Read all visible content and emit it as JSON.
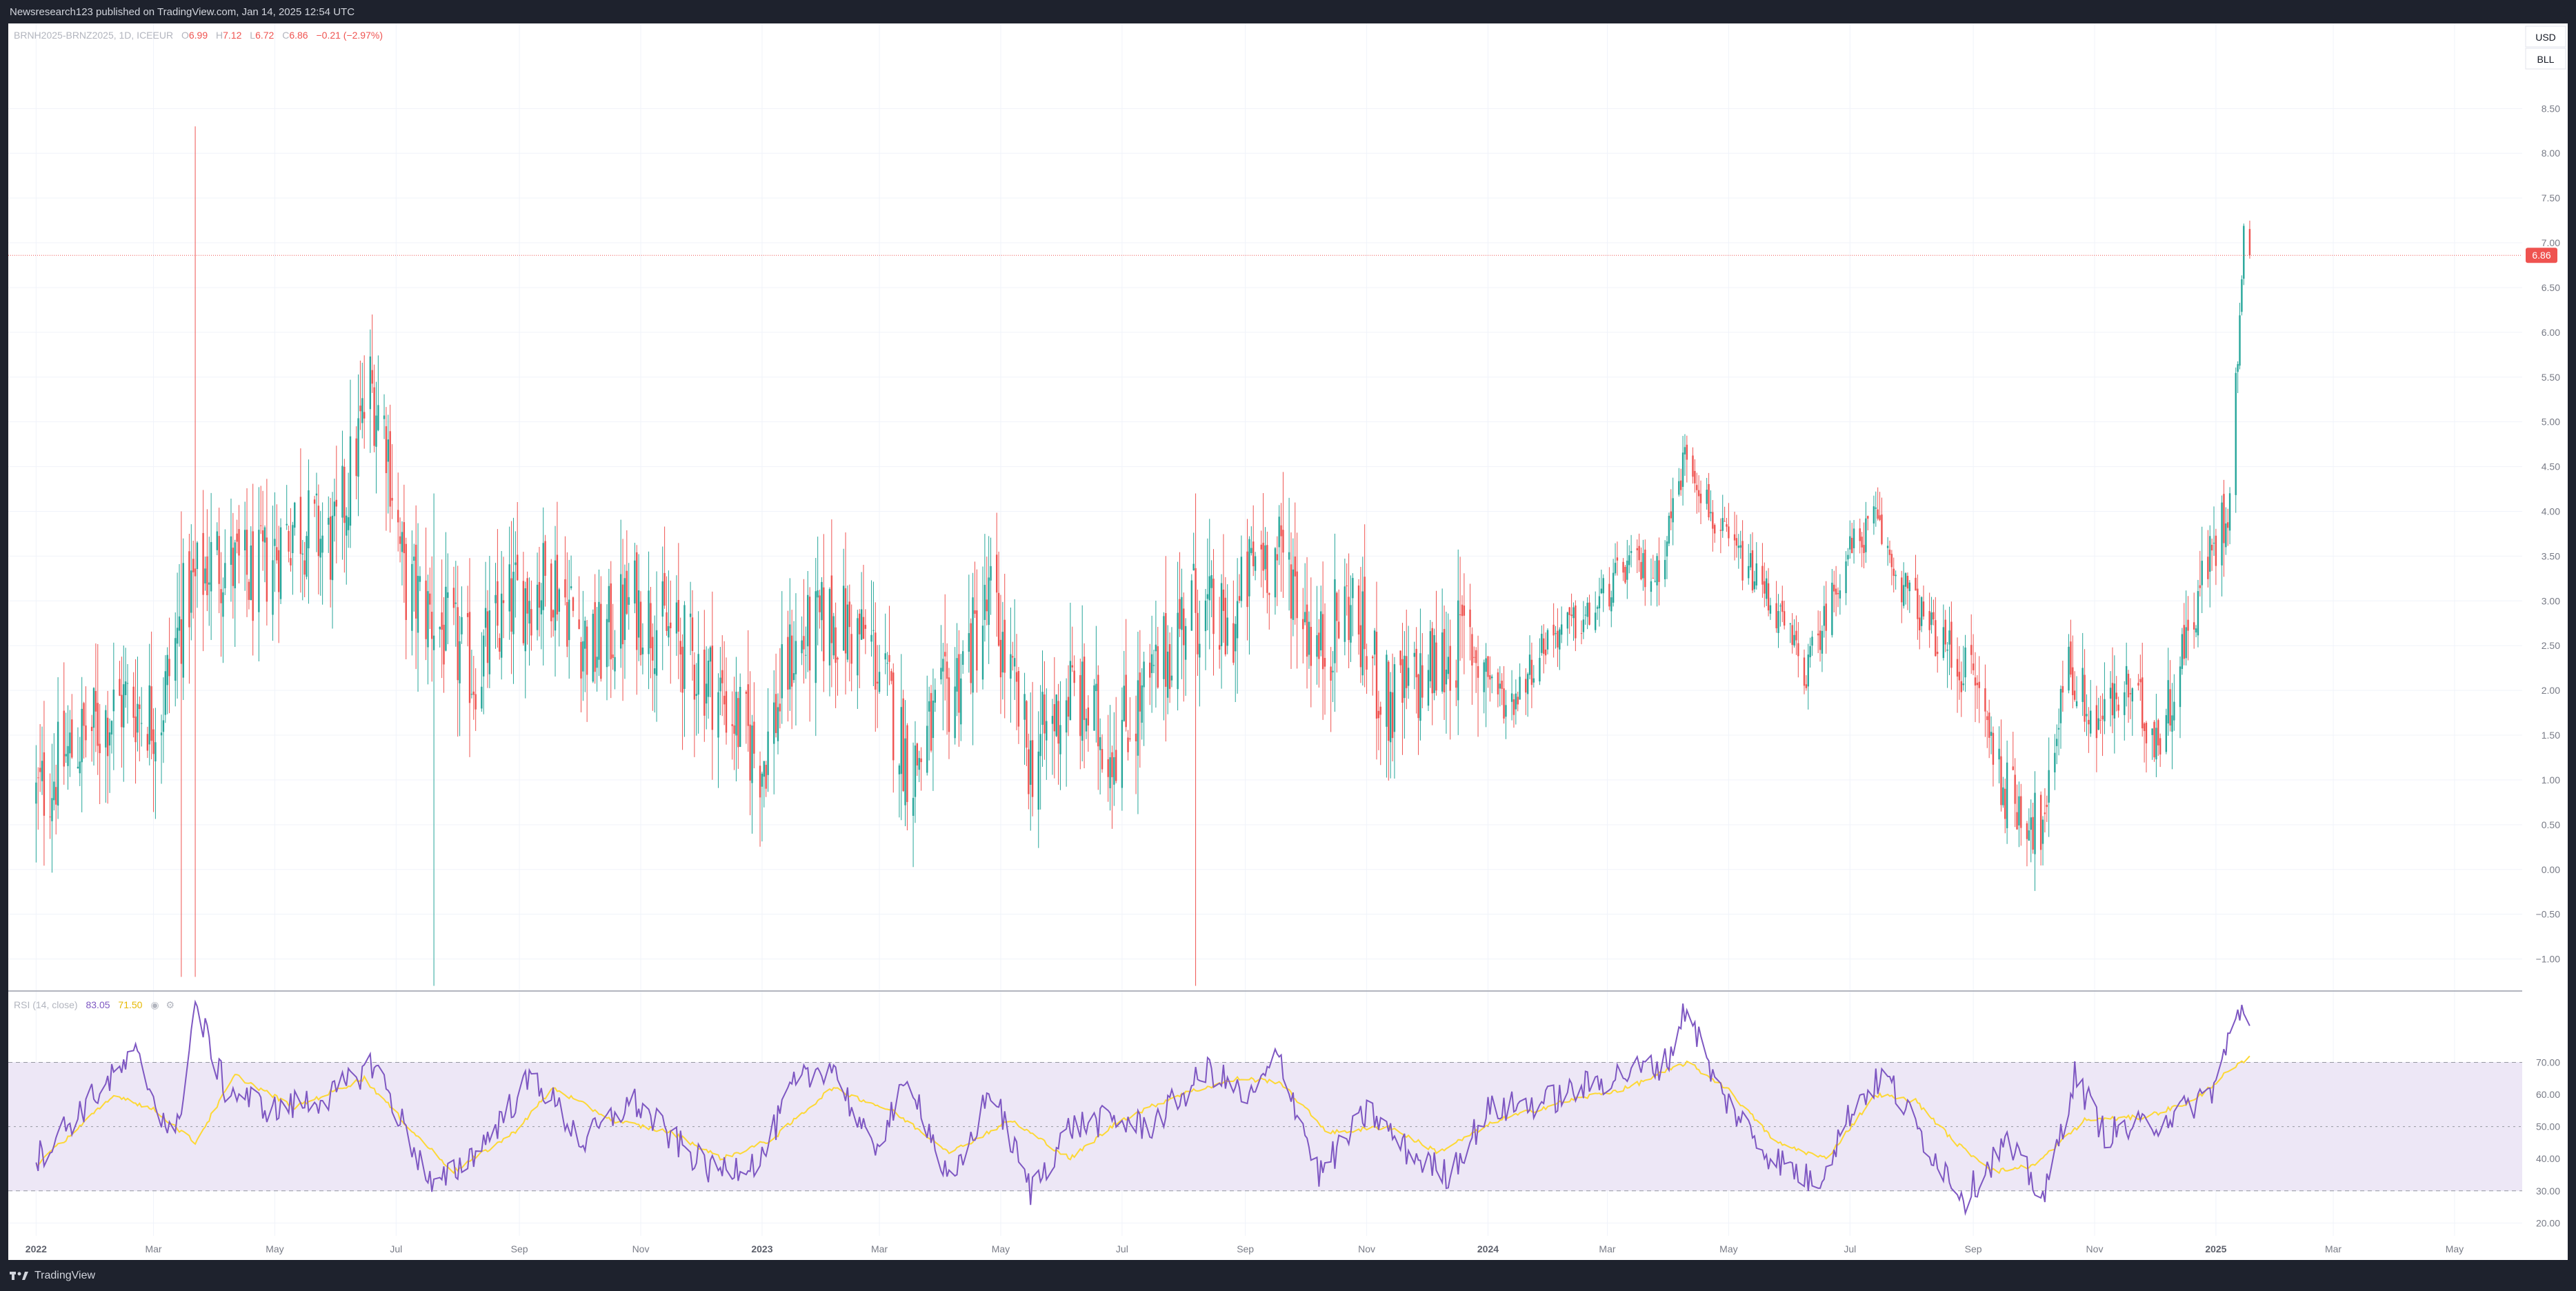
{
  "header": {
    "published": "Newsresearch123 published on TradingView.com, Jan 14, 2025 12:54 UTC"
  },
  "legend": {
    "symbol": "BRNH2025-BRNZ2025, 1D, ICEEUR",
    "open_label": "O",
    "open": "6.99",
    "high_label": "H",
    "high": "7.12",
    "low_label": "L",
    "low": "6.72",
    "close_label": "C",
    "close": "6.86",
    "change": "−0.21 (−2.97%)"
  },
  "currency_button": "USD",
  "unit_button": "BLL",
  "last_price_label": "6.86",
  "rsi_legend": {
    "name": "RSI (14, close)",
    "value": "83.05",
    "ma_value": "71.50"
  },
  "footer": {
    "brand": "TradingView"
  },
  "colors": {
    "up": "#26a69a",
    "down": "#ef5350",
    "rsi": "#7e57c2",
    "rsi_ma": "#fdd835",
    "band": "#ede7f6"
  },
  "chart_data": [
    {
      "type": "candlestick",
      "title": "BRNH2025-BRNZ2025, 1D, ICEEUR",
      "y_ticks": [
        "8.50",
        "8.00",
        "7.50",
        "7.00",
        "6.50",
        "6.00",
        "5.50",
        "5.00",
        "4.50",
        "4.00",
        "3.50",
        "3.00",
        "2.50",
        "2.00",
        "1.50",
        "1.00",
        "0.50",
        "0.00",
        "−0.50",
        "−1.00"
      ],
      "ylim": [
        -1.35,
        9.45
      ],
      "x_ticks": [
        {
          "label": "2022",
          "bold": true,
          "t": 0
        },
        {
          "label": "Mar",
          "bold": false,
          "t": 59
        },
        {
          "label": "May",
          "bold": false,
          "t": 120
        },
        {
          "label": "Jul",
          "bold": false,
          "t": 181
        },
        {
          "label": "Sep",
          "bold": false,
          "t": 243
        },
        {
          "label": "Nov",
          "bold": false,
          "t": 304
        },
        {
          "label": "2023",
          "bold": true,
          "t": 365
        },
        {
          "label": "Mar",
          "bold": false,
          "t": 424
        },
        {
          "label": "May",
          "bold": false,
          "t": 485
        },
        {
          "label": "Jul",
          "bold": false,
          "t": 546
        },
        {
          "label": "Sep",
          "bold": false,
          "t": 608
        },
        {
          "label": "Nov",
          "bold": false,
          "t": 669
        },
        {
          "label": "2024",
          "bold": true,
          "t": 730
        },
        {
          "label": "Mar",
          "bold": false,
          "t": 790
        },
        {
          "label": "May",
          "bold": false,
          "t": 851
        },
        {
          "label": "Jul",
          "bold": false,
          "t": 912
        },
        {
          "label": "Sep",
          "bold": false,
          "t": 974
        },
        {
          "label": "Nov",
          "bold": false,
          "t": 1035
        },
        {
          "label": "2025",
          "bold": true,
          "t": 1096
        },
        {
          "label": "Mar",
          "bold": false,
          "t": 1155
        },
        {
          "label": "May",
          "bold": false,
          "t": 1216
        }
      ],
      "xlim_days": [
        -14,
        1250
      ],
      "close_path": [
        {
          "t": 0,
          "v": 0.8
        },
        {
          "t": 20,
          "v": 1.4
        },
        {
          "t": 45,
          "v": 1.9
        },
        {
          "t": 62,
          "v": 1.7
        },
        {
          "t": 75,
          "v": 3.0
        },
        {
          "t": 90,
          "v": 3.5
        },
        {
          "t": 110,
          "v": 3.2
        },
        {
          "t": 130,
          "v": 3.9
        },
        {
          "t": 150,
          "v": 3.6
        },
        {
          "t": 168,
          "v": 5.4
        },
        {
          "t": 176,
          "v": 4.9
        },
        {
          "t": 185,
          "v": 3.2
        },
        {
          "t": 200,
          "v": 2.8
        },
        {
          "t": 220,
          "v": 2.2
        },
        {
          "t": 240,
          "v": 3.0
        },
        {
          "t": 260,
          "v": 3.3
        },
        {
          "t": 280,
          "v": 2.4
        },
        {
          "t": 300,
          "v": 3.0
        },
        {
          "t": 320,
          "v": 2.6
        },
        {
          "t": 340,
          "v": 2.1
        },
        {
          "t": 365,
          "v": 1.2
        },
        {
          "t": 380,
          "v": 2.4
        },
        {
          "t": 400,
          "v": 2.8
        },
        {
          "t": 420,
          "v": 2.5
        },
        {
          "t": 440,
          "v": 1.1
        },
        {
          "t": 460,
          "v": 2.0
        },
        {
          "t": 480,
          "v": 3.0
        },
        {
          "t": 500,
          "v": 1.2
        },
        {
          "t": 520,
          "v": 2.0
        },
        {
          "t": 540,
          "v": 1.4
        },
        {
          "t": 560,
          "v": 2.0
        },
        {
          "t": 580,
          "v": 3.0
        },
        {
          "t": 600,
          "v": 2.6
        },
        {
          "t": 615,
          "v": 3.6
        },
        {
          "t": 630,
          "v": 3.4
        },
        {
          "t": 645,
          "v": 2.4
        },
        {
          "t": 660,
          "v": 3.0
        },
        {
          "t": 680,
          "v": 1.8
        },
        {
          "t": 700,
          "v": 2.2
        },
        {
          "t": 720,
          "v": 2.6
        },
        {
          "t": 740,
          "v": 1.8
        },
        {
          "t": 760,
          "v": 2.6
        },
        {
          "t": 780,
          "v": 2.8
        },
        {
          "t": 800,
          "v": 3.4
        },
        {
          "t": 815,
          "v": 3.3
        },
        {
          "t": 830,
          "v": 4.7
        },
        {
          "t": 845,
          "v": 3.8
        },
        {
          "t": 870,
          "v": 3.1
        },
        {
          "t": 890,
          "v": 2.2
        },
        {
          "t": 910,
          "v": 3.5
        },
        {
          "t": 925,
          "v": 3.9
        },
        {
          "t": 935,
          "v": 3.3
        },
        {
          "t": 955,
          "v": 2.6
        },
        {
          "t": 975,
          "v": 2.1
        },
        {
          "t": 990,
          "v": 0.9
        },
        {
          "t": 1010,
          "v": 0.4
        },
        {
          "t": 1020,
          "v": 2.4
        },
        {
          "t": 1035,
          "v": 1.6
        },
        {
          "t": 1050,
          "v": 2.0
        },
        {
          "t": 1068,
          "v": 1.5
        },
        {
          "t": 1080,
          "v": 2.5
        },
        {
          "t": 1090,
          "v": 3.3
        },
        {
          "t": 1102,
          "v": 4.0
        },
        {
          "t": 1106,
          "v": 5.4
        },
        {
          "t": 1110,
          "v": 7.0
        },
        {
          "t": 1113,
          "v": 6.86
        }
      ],
      "spikes": [
        {
          "t": 80,
          "low": -1.2,
          "high": 8.3
        },
        {
          "t": 73,
          "low": -1.2,
          "high": 4.0
        },
        {
          "t": 200,
          "low": -1.3,
          "high": 4.2
        },
        {
          "t": 583,
          "low": -1.3,
          "high": 4.2
        }
      ],
      "last_price": 6.86
    },
    {
      "type": "line",
      "title": "RSI (14, close)",
      "y_ticks": [
        "70.00",
        "60.00",
        "50.00",
        "40.00",
        "30.00",
        "20.00"
      ],
      "ylim": [
        16,
        92
      ],
      "band": [
        30,
        70
      ],
      "midline": 50,
      "series": [
        {
          "name": "RSI",
          "path": [
            {
              "t": 0,
              "v": 40
            },
            {
              "t": 30,
              "v": 60
            },
            {
              "t": 50,
              "v": 72
            },
            {
              "t": 70,
              "v": 45
            },
            {
              "t": 80,
              "v": 88
            },
            {
              "t": 95,
              "v": 62
            },
            {
              "t": 120,
              "v": 55
            },
            {
              "t": 150,
              "v": 60
            },
            {
              "t": 170,
              "v": 70
            },
            {
              "t": 185,
              "v": 50
            },
            {
              "t": 200,
              "v": 30
            },
            {
              "t": 225,
              "v": 45
            },
            {
              "t": 250,
              "v": 66
            },
            {
              "t": 275,
              "v": 45
            },
            {
              "t": 300,
              "v": 58
            },
            {
              "t": 320,
              "v": 46
            },
            {
              "t": 340,
              "v": 36
            },
            {
              "t": 365,
              "v": 40
            },
            {
              "t": 380,
              "v": 62
            },
            {
              "t": 400,
              "v": 70
            },
            {
              "t": 420,
              "v": 42
            },
            {
              "t": 440,
              "v": 65
            },
            {
              "t": 460,
              "v": 30
            },
            {
              "t": 480,
              "v": 62
            },
            {
              "t": 500,
              "v": 30
            },
            {
              "t": 520,
              "v": 50
            },
            {
              "t": 540,
              "v": 52
            },
            {
              "t": 560,
              "v": 50
            },
            {
              "t": 590,
              "v": 68
            },
            {
              "t": 610,
              "v": 58
            },
            {
              "t": 625,
              "v": 72
            },
            {
              "t": 645,
              "v": 35
            },
            {
              "t": 670,
              "v": 55
            },
            {
              "t": 690,
              "v": 42
            },
            {
              "t": 710,
              "v": 35
            },
            {
              "t": 730,
              "v": 55
            },
            {
              "t": 760,
              "v": 58
            },
            {
              "t": 790,
              "v": 65
            },
            {
              "t": 820,
              "v": 70
            },
            {
              "t": 830,
              "v": 88
            },
            {
              "t": 845,
              "v": 62
            },
            {
              "t": 870,
              "v": 42
            },
            {
              "t": 895,
              "v": 32
            },
            {
              "t": 915,
              "v": 58
            },
            {
              "t": 930,
              "v": 66
            },
            {
              "t": 950,
              "v": 45
            },
            {
              "t": 970,
              "v": 28
            },
            {
              "t": 990,
              "v": 45
            },
            {
              "t": 1010,
              "v": 28
            },
            {
              "t": 1025,
              "v": 66
            },
            {
              "t": 1040,
              "v": 48
            },
            {
              "t": 1060,
              "v": 50
            },
            {
              "t": 1080,
              "v": 55
            },
            {
              "t": 1095,
              "v": 62
            },
            {
              "t": 1103,
              "v": 78
            },
            {
              "t": 1110,
              "v": 88
            },
            {
              "t": 1113,
              "v": 83
            }
          ]
        },
        {
          "name": "RSI-based MA",
          "path": [
            {
              "t": 0,
              "v": 38
            },
            {
              "t": 40,
              "v": 60
            },
            {
              "t": 60,
              "v": 55
            },
            {
              "t": 80,
              "v": 45
            },
            {
              "t": 100,
              "v": 66
            },
            {
              "t": 130,
              "v": 56
            },
            {
              "t": 165,
              "v": 65
            },
            {
              "t": 190,
              "v": 48
            },
            {
              "t": 210,
              "v": 36
            },
            {
              "t": 240,
              "v": 48
            },
            {
              "t": 260,
              "v": 62
            },
            {
              "t": 290,
              "v": 52
            },
            {
              "t": 320,
              "v": 48
            },
            {
              "t": 345,
              "v": 40
            },
            {
              "t": 370,
              "v": 46
            },
            {
              "t": 400,
              "v": 62
            },
            {
              "t": 430,
              "v": 55
            },
            {
              "t": 460,
              "v": 42
            },
            {
              "t": 490,
              "v": 52
            },
            {
              "t": 520,
              "v": 40
            },
            {
              "t": 545,
              "v": 52
            },
            {
              "t": 575,
              "v": 60
            },
            {
              "t": 605,
              "v": 65
            },
            {
              "t": 625,
              "v": 64
            },
            {
              "t": 650,
              "v": 48
            },
            {
              "t": 680,
              "v": 50
            },
            {
              "t": 705,
              "v": 42
            },
            {
              "t": 735,
              "v": 52
            },
            {
              "t": 770,
              "v": 58
            },
            {
              "t": 800,
              "v": 62
            },
            {
              "t": 830,
              "v": 70
            },
            {
              "t": 850,
              "v": 62
            },
            {
              "t": 875,
              "v": 45
            },
            {
              "t": 900,
              "v": 40
            },
            {
              "t": 925,
              "v": 60
            },
            {
              "t": 945,
              "v": 58
            },
            {
              "t": 965,
              "v": 45
            },
            {
              "t": 985,
              "v": 36
            },
            {
              "t": 1005,
              "v": 38
            },
            {
              "t": 1030,
              "v": 52
            },
            {
              "t": 1060,
              "v": 53
            },
            {
              "t": 1085,
              "v": 58
            },
            {
              "t": 1100,
              "v": 66
            },
            {
              "t": 1113,
              "v": 71.5
            }
          ]
        }
      ]
    }
  ]
}
